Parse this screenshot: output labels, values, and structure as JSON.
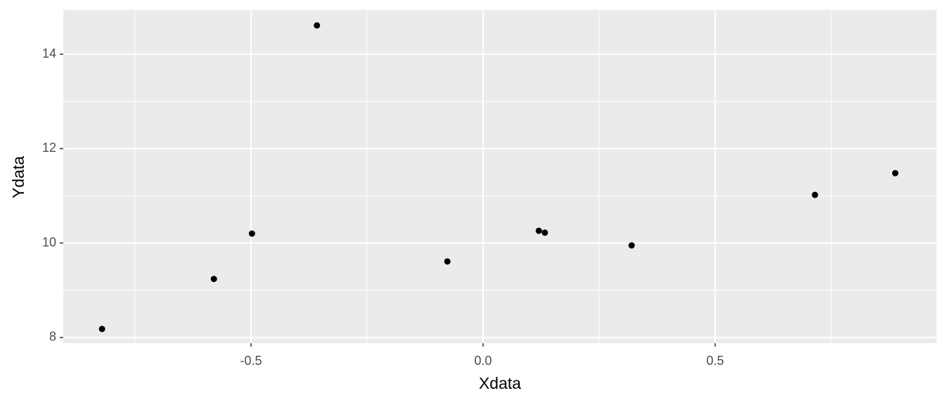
{
  "chart_data": {
    "type": "scatter",
    "x_label": "Xdata",
    "y_label": "Ydata",
    "series": [
      {
        "color": "#000000",
        "x": [
          -0.821,
          -0.58,
          -0.498,
          -0.358,
          -0.077,
          0.12,
          0.133,
          0.32,
          0.715,
          0.888
        ],
        "values": [
          8.18,
          9.24,
          10.2,
          14.61,
          9.61,
          10.26,
          10.22,
          9.95,
          11.02,
          11.48
        ]
      }
    ],
    "xlim": [
      -0.9045,
      0.977
    ],
    "ylim": [
      7.88,
      14.94
    ],
    "xticks": [
      {
        "value": -0.5,
        "label": "-0.5"
      },
      {
        "value": 0,
        "label": "0.0"
      },
      {
        "value": 0.5,
        "label": "0.5"
      }
    ],
    "yticks": [
      8,
      10,
      12,
      14
    ],
    "grid": true
  }
}
